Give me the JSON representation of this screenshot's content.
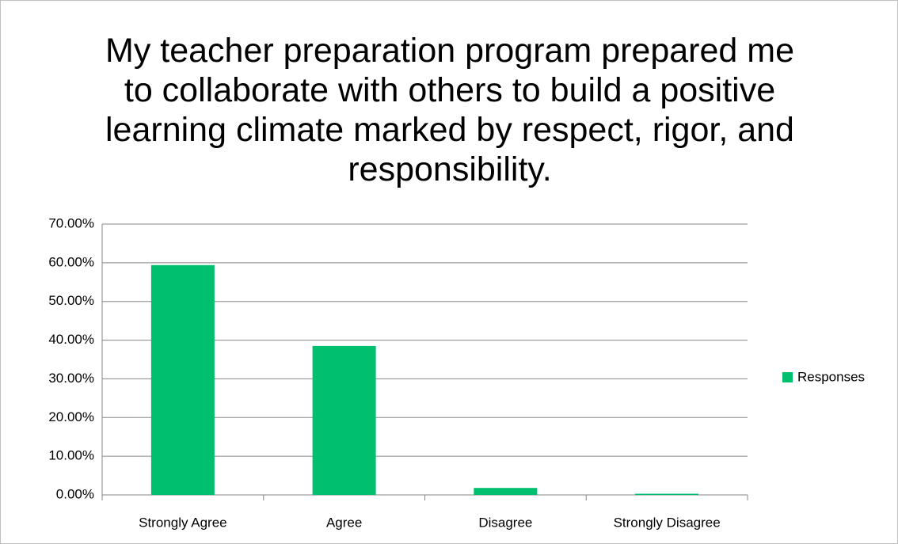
{
  "chart_data": {
    "type": "bar",
    "title": "My teacher preparation program prepared me to collaborate with others to build a positive learning climate marked by respect, rigor, and responsibility.",
    "categories": [
      "Strongly Agree",
      "Agree",
      "Disagree",
      "Strongly Disagree"
    ],
    "series": [
      {
        "name": "Responses",
        "color": "#00bf6f",
        "values": [
          59.4,
          38.5,
          1.8,
          0.3
        ]
      }
    ],
    "ylim": [
      0,
      70
    ],
    "yticks": [
      {
        "value": 0,
        "label": "0.00%"
      },
      {
        "value": 10,
        "label": "10.00%"
      },
      {
        "value": 20,
        "label": "20.00%"
      },
      {
        "value": 30,
        "label": "30.00%"
      },
      {
        "value": 40,
        "label": "40.00%"
      },
      {
        "value": 50,
        "label": "50.00%"
      },
      {
        "value": 60,
        "label": "60.00%"
      },
      {
        "value": 70,
        "label": "70.00%"
      }
    ],
    "grid": true,
    "legend": "right"
  }
}
